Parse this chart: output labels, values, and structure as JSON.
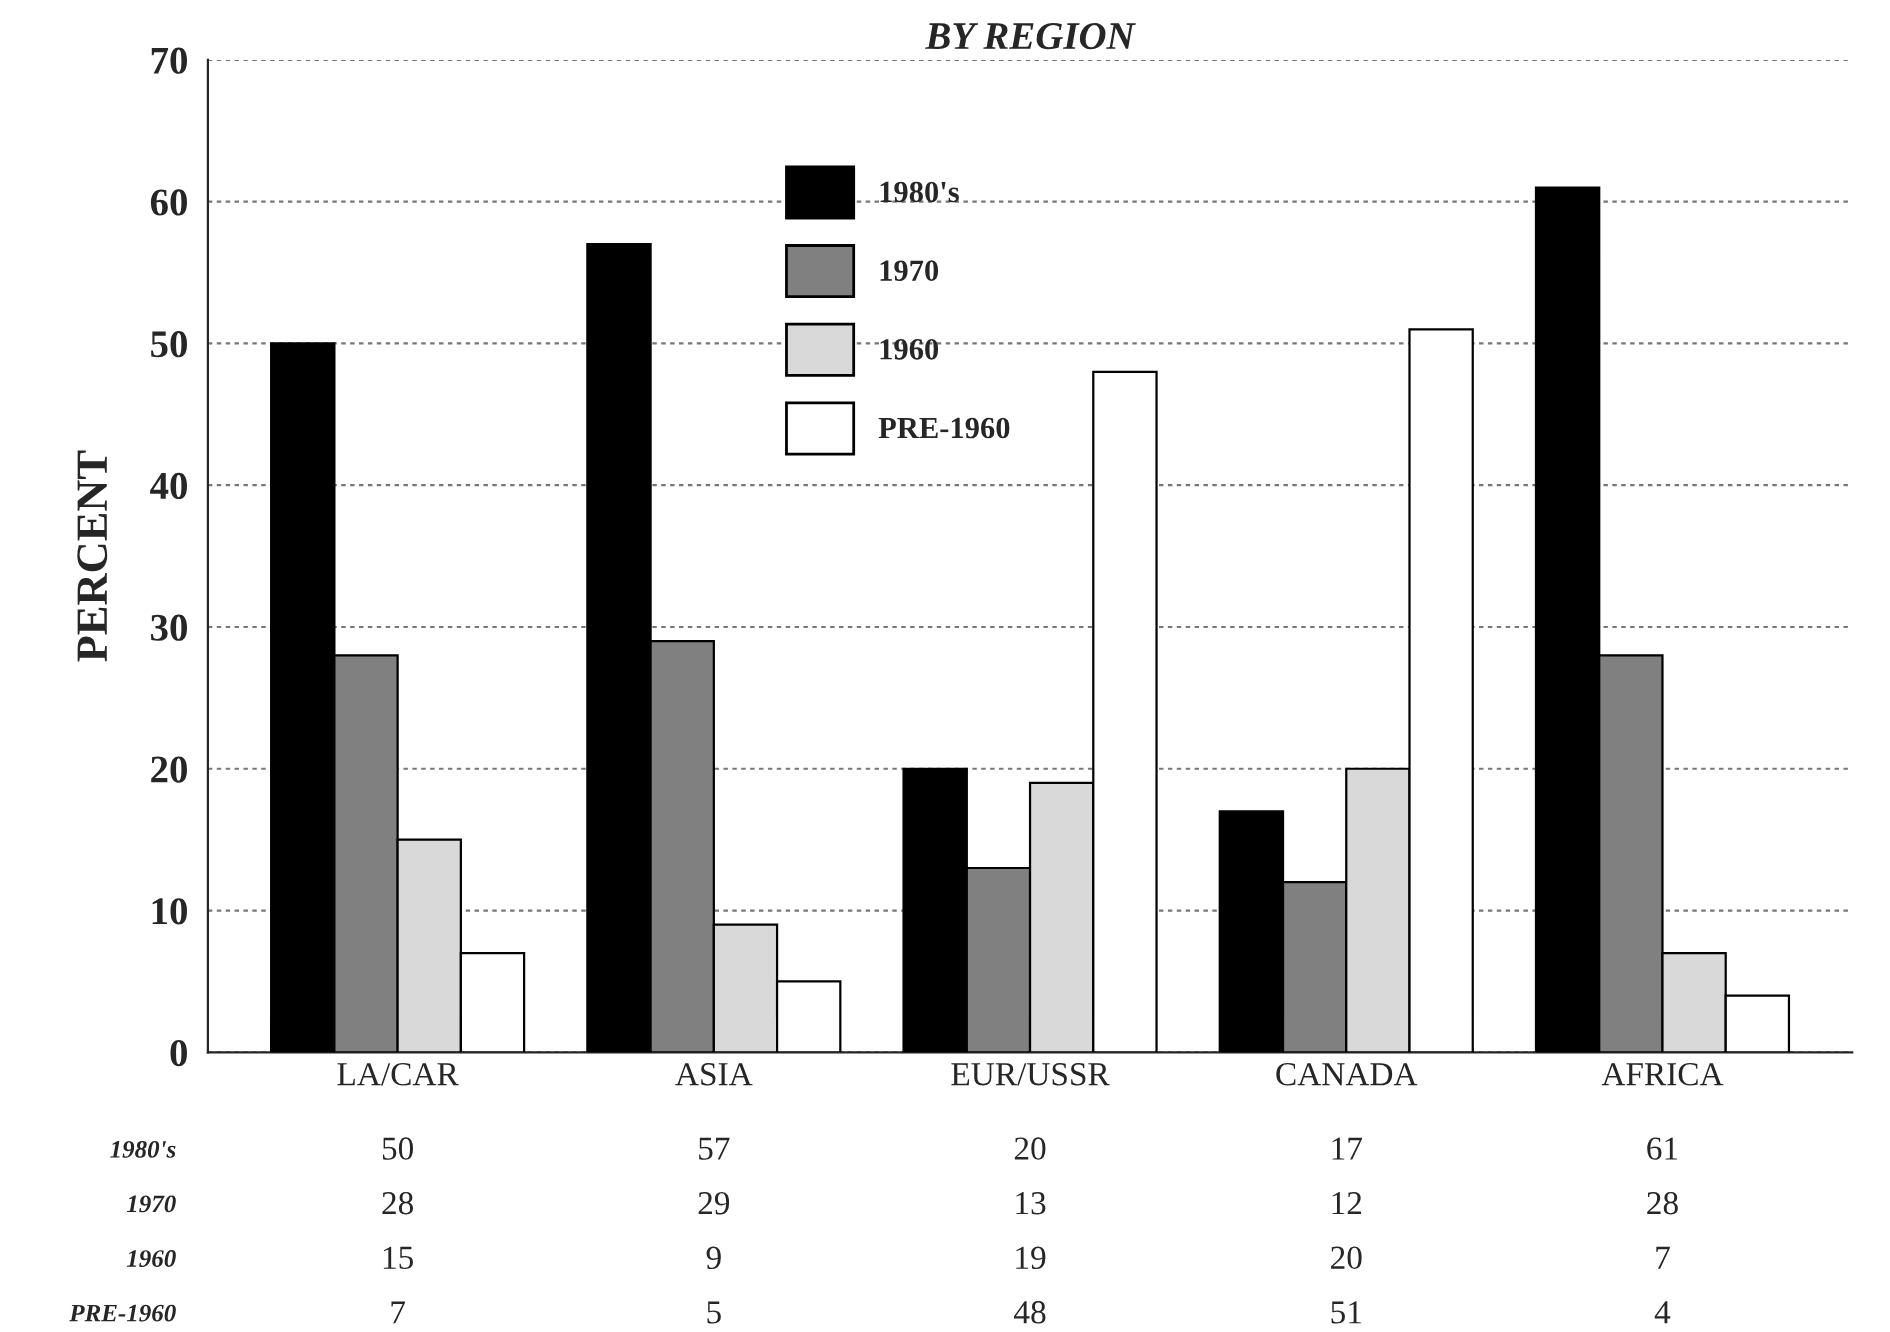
{
  "chart_data": {
    "type": "bar",
    "title": "BY REGION",
    "ylabel": "PERCENT",
    "categories": [
      "LA/CAR",
      "ASIA",
      "EUR/USSR",
      "CANADA",
      "AFRICA"
    ],
    "series": [
      {
        "name": "1980's",
        "color": "#000000",
        "values": [
          50,
          57,
          20,
          17,
          61
        ]
      },
      {
        "name": "1970",
        "color": "#808080",
        "values": [
          28,
          29,
          13,
          12,
          28
        ]
      },
      {
        "name": "1960",
        "color": "#d9d9d9",
        "values": [
          15,
          9,
          19,
          20,
          7
        ]
      },
      {
        "name": "PRE-1960",
        "color": "#ffffff",
        "values": [
          7,
          5,
          48,
          51,
          4
        ]
      }
    ],
    "ylim": [
      0,
      70
    ],
    "yticks": [
      0,
      10,
      20,
      30,
      40,
      50,
      60,
      70
    ],
    "grid": "y",
    "legend": "top",
    "data_labels": true
  }
}
